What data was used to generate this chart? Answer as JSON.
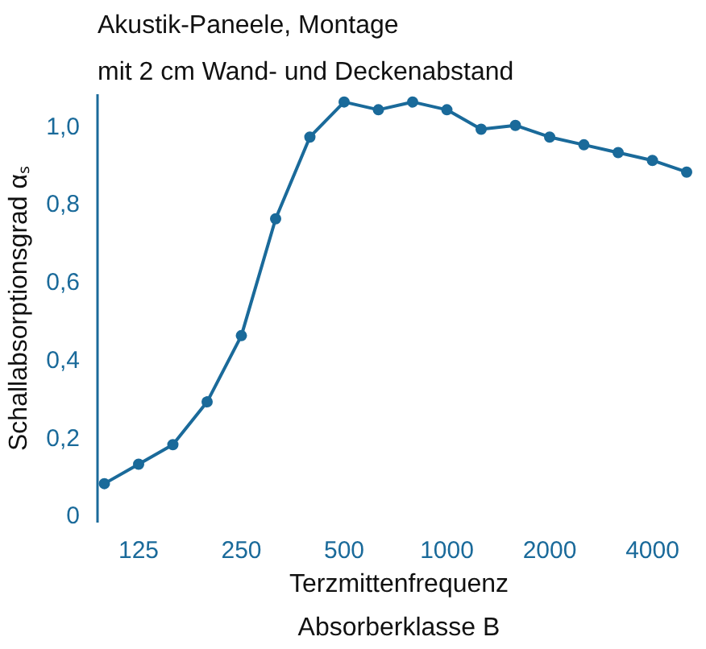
{
  "chart_data": {
    "type": "line",
    "title": "Akustik-Paneele, Montage",
    "subtitle": "mit 2 cm Wand- und Deckenabstand",
    "xlabel": "Terzmittenfrequenz",
    "ylabel": "Schallabsorptionsgrad αₛ",
    "annotations": [
      "Absorberklasse B"
    ],
    "categories": [
      null,
      "125",
      null,
      null,
      "250",
      null,
      null,
      "500",
      null,
      null,
      "1000",
      null,
      null,
      "2000",
      null,
      null,
      "4000",
      null
    ],
    "series": [
      {
        "color": "#1a6a9a",
        "values": [
          0.08,
          0.13,
          0.18,
          0.29,
          0.46,
          0.76,
          0.97,
          1.06,
          1.04,
          1.06,
          1.04,
          0.99,
          1.0,
          0.97,
          0.95,
          0.93,
          0.91,
          0.88
        ]
      }
    ],
    "ylim": [
      -0.02,
      1.08
    ],
    "yticks": [
      0,
      {
        "value": 0.2,
        "label": "0,2"
      },
      {
        "value": 0.4,
        "label": "0,4"
      },
      {
        "value": 0.6,
        "label": "0,6"
      },
      {
        "value": 0.8,
        "label": "0,8"
      },
      {
        "value": 1.0,
        "label": "1,0"
      }
    ],
    "grid": false,
    "marker": "circle",
    "line_style": "solid"
  }
}
